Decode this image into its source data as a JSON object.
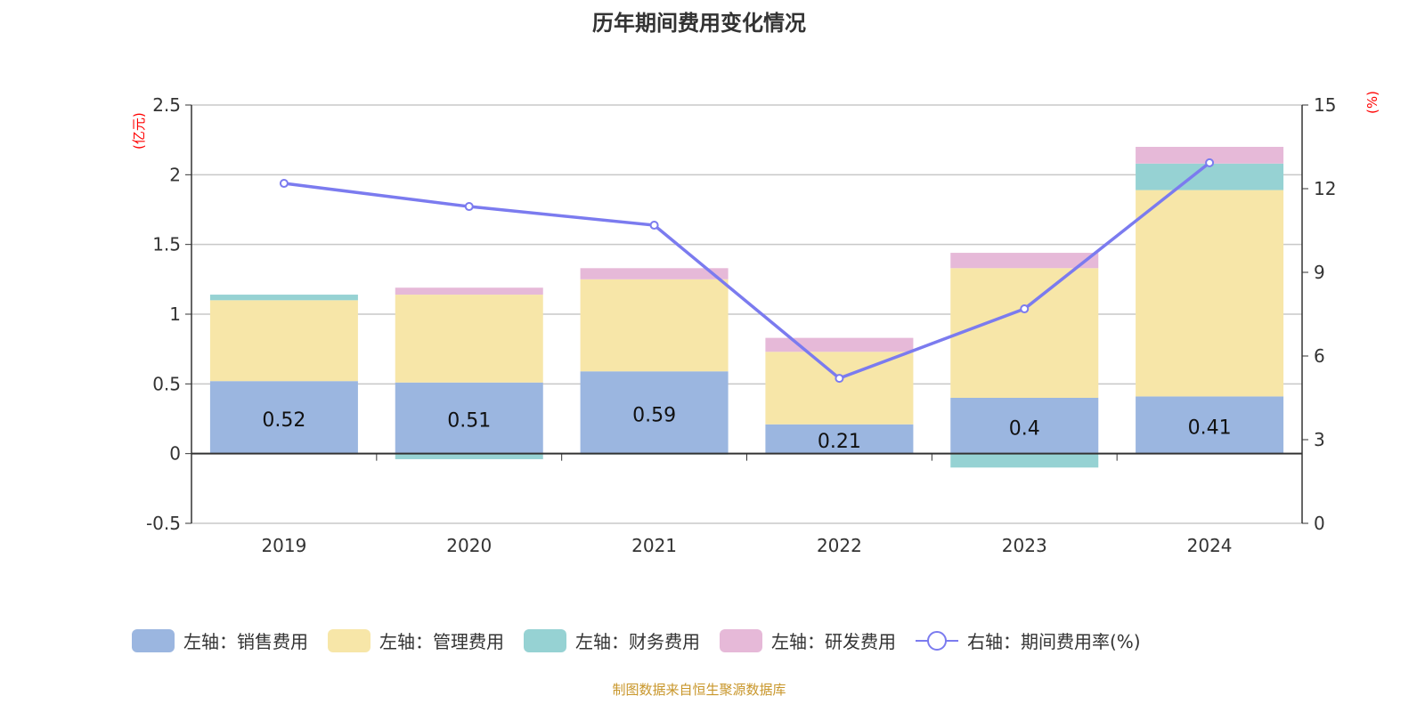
{
  "chart_data": {
    "type": "bar",
    "title": "历年期间费用变化情况",
    "ylabel": "(亿元)",
    "y2label": "(%)",
    "categories": [
      "2019",
      "2020",
      "2021",
      "2022",
      "2023",
      "2024"
    ],
    "ylim": [
      -0.5,
      2.5
    ],
    "yticks": [
      "-0.5",
      "0",
      "0.5",
      "1",
      "1.5",
      "2",
      "2.5"
    ],
    "y2lim": [
      0,
      15
    ],
    "y2ticks": [
      "0",
      "3",
      "6",
      "9",
      "12",
      "15"
    ],
    "grid": true,
    "legend_position": "bottom",
    "series": [
      {
        "name": "左轴：销售费用",
        "type": "bar",
        "axis": "left",
        "color": "#9bb6e0",
        "values": [
          0.52,
          0.51,
          0.59,
          0.21,
          0.4,
          0.41
        ],
        "labels": [
          "0.52",
          "0.51",
          "0.59",
          "0.21",
          "0.4",
          "0.41"
        ]
      },
      {
        "name": "左轴：管理费用",
        "type": "bar",
        "axis": "left",
        "color": "#f7e6a8",
        "values": [
          0.58,
          0.63,
          0.66,
          0.52,
          0.93,
          1.48
        ]
      },
      {
        "name": "左轴：财务费用",
        "type": "bar",
        "axis": "left",
        "color": "#96d2d3",
        "values": [
          0.04,
          -0.04,
          -0.005,
          0.0,
          -0.1,
          0.19
        ]
      },
      {
        "name": "左轴：研发费用",
        "type": "bar",
        "axis": "left",
        "color": "#e6b9d8",
        "values": [
          0.0,
          0.05,
          0.08,
          0.1,
          0.11,
          0.12
        ]
      },
      {
        "name": "右轴：期间费用率(%)",
        "type": "line",
        "axis": "right",
        "color": "#7b7bef",
        "values": [
          12.19,
          11.36,
          10.69,
          5.2,
          7.69,
          12.93
        ]
      }
    ]
  },
  "source": "制图数据来自恒生聚源数据库"
}
